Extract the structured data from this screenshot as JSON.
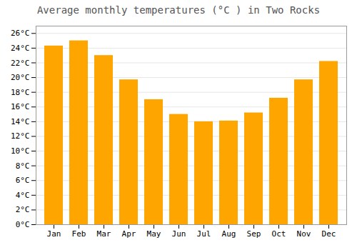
{
  "chart_data": {
    "type": "bar",
    "title": "Average monthly temperatures (°C ) in Two Rocks",
    "categories": [
      "Jan",
      "Feb",
      "Mar",
      "Apr",
      "May",
      "Jun",
      "Jul",
      "Aug",
      "Sep",
      "Oct",
      "Nov",
      "Dec"
    ],
    "values": [
      24.3,
      25.0,
      23.0,
      19.7,
      17.0,
      15.0,
      14.0,
      14.1,
      15.2,
      17.2,
      19.7,
      22.2
    ],
    "color": "#FFA500",
    "ylim": [
      0,
      27
    ],
    "yticks": [
      {
        "value": 0,
        "label": "0°C"
      },
      {
        "value": 2,
        "label": "2°C"
      },
      {
        "value": 4,
        "label": "4°C"
      },
      {
        "value": 6,
        "label": "6°C"
      },
      {
        "value": 8,
        "label": "8°C"
      },
      {
        "value": 10,
        "label": "10°C"
      },
      {
        "value": 12,
        "label": "12°C"
      },
      {
        "value": 14,
        "label": "14°C"
      },
      {
        "value": 16,
        "label": "16°C"
      },
      {
        "value": 18,
        "label": "18°C"
      },
      {
        "value": 20,
        "label": "20°C"
      },
      {
        "value": 22,
        "label": "22°C"
      },
      {
        "value": 24,
        "label": "24°C"
      },
      {
        "value": 26,
        "label": "26°C"
      }
    ],
    "grid": true
  }
}
